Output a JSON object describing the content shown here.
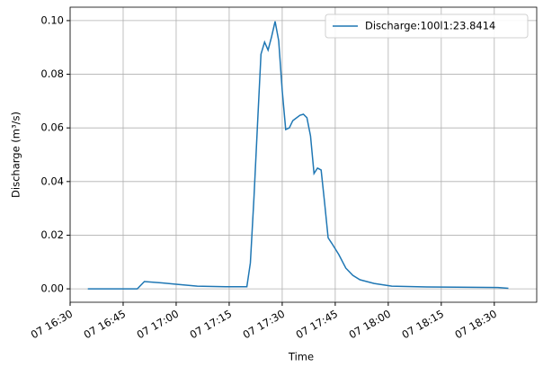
{
  "chart_data": {
    "type": "line",
    "xlabel": "Time",
    "ylabel": "Discharge (m³/s)",
    "x": [
      "07 16:35",
      "07 16:49",
      "07 16:51",
      "07 16:56",
      "07 17:00",
      "07 17:06",
      "07 17:14",
      "07 17:20",
      "07 17:21",
      "07 17:22",
      "07 17:23",
      "07 17:24",
      "07 17:25",
      "07 17:26",
      "07 17:27",
      "07 17:28",
      "07 17:29",
      "07 17:30",
      "07 17:31",
      "07 17:32",
      "07 17:33",
      "07 17:35",
      "07 17:36",
      "07 17:37",
      "07 17:38",
      "07 17:39",
      "07 17:40",
      "07 17:41",
      "07 17:42",
      "07 17:43",
      "07 17:44",
      "07 17:46",
      "07 17:48",
      "07 17:50",
      "07 17:52",
      "07 17:56",
      "07 18:01",
      "07 18:11",
      "07 18:31",
      "07 18:34"
    ],
    "series": [
      {
        "name": "Discharge:100l1:23.8414",
        "color": "#1f77b4",
        "values": [
          0,
          0,
          0.0027,
          0.0022,
          0.0017,
          0.001,
          0.0008,
          0.0008,
          0.0097,
          0.034,
          0.061,
          0.0875,
          0.092,
          0.089,
          0.094,
          0.0997,
          0.0925,
          0.074,
          0.0594,
          0.06,
          0.0627,
          0.0647,
          0.0651,
          0.0638,
          0.057,
          0.043,
          0.045,
          0.0443,
          0.032,
          0.019,
          0.017,
          0.0128,
          0.0077,
          0.005,
          0.0034,
          0.002,
          0.001,
          0.0007,
          0.0005,
          0.0002
        ]
      }
    ],
    "xlim": [
      "07 16:30",
      "07 18:42"
    ],
    "xticks": [
      "07 16:30",
      "07 16:45",
      "07 17:00",
      "07 17:15",
      "07 17:30",
      "07 17:45",
      "07 18:00",
      "07 18:15",
      "07 18:30"
    ],
    "ylim": [
      -0.005,
      0.105
    ],
    "yticks": [
      {
        "value": 0,
        "label": "0.00"
      },
      {
        "value": 0.02,
        "label": "0.02"
      },
      {
        "value": 0.04,
        "label": "0.04"
      },
      {
        "value": 0.06,
        "label": "0.06"
      },
      {
        "value": 0.08,
        "label": "0.08"
      },
      {
        "value": 0.1,
        "label": "0.10"
      }
    ],
    "grid": true,
    "legend": "upper right"
  }
}
